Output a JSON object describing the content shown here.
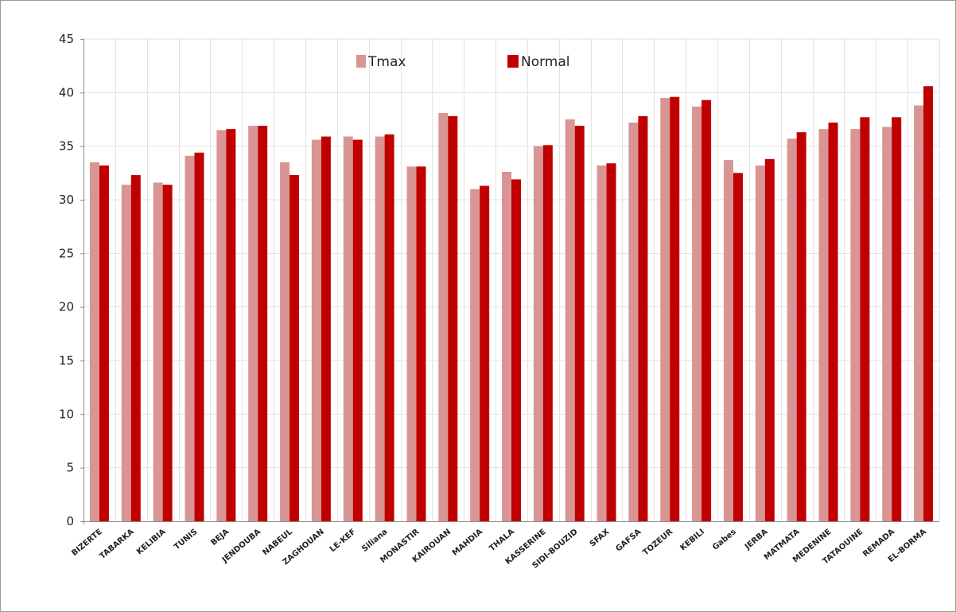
{
  "chart_data": {
    "type": "bar",
    "categories": [
      "BIZERTE",
      "TABARKA",
      "KELIBIA",
      "TUNIS",
      "BEJA",
      "JENDOUBA",
      "NABEUL",
      "ZAGHOUAN",
      "LE-KEF",
      "Siliana",
      "MONASTIR",
      "KAIROUAN",
      "MAHDIA",
      "THALA",
      "KASSERINE",
      "SIDI-BOUZID",
      "SFAX",
      "GAFSA",
      "TOZEUR",
      "KEBILI",
      "Gabes",
      "JERBA",
      "MATMATA",
      "MEDENINE",
      "TATAOUINE",
      "REMADA",
      "EL-BORMA"
    ],
    "series": [
      {
        "name": "Tmax",
        "color": "#d99594",
        "values": [
          33.5,
          31.4,
          31.6,
          34.1,
          36.5,
          36.9,
          33.5,
          35.6,
          35.9,
          35.9,
          33.1,
          38.1,
          31.0,
          32.6,
          35.0,
          37.5,
          33.2,
          37.2,
          39.5,
          38.7,
          33.7,
          33.2,
          35.7,
          36.6,
          36.6,
          36.8,
          38.8
        ]
      },
      {
        "name": "Normal",
        "color": "#c00000",
        "values": [
          33.2,
          32.3,
          31.4,
          34.4,
          36.6,
          36.9,
          32.3,
          35.9,
          35.6,
          36.1,
          33.1,
          37.8,
          31.3,
          31.9,
          35.1,
          36.9,
          33.4,
          37.8,
          39.6,
          39.3,
          32.5,
          33.8,
          36.3,
          37.2,
          37.7,
          37.7,
          40.6
        ]
      }
    ],
    "ylim": [
      0,
      45
    ],
    "yticks": [
      0,
      5,
      10,
      15,
      20,
      25,
      30,
      35,
      40,
      45
    ],
    "grid": true,
    "legend": "top-center"
  }
}
